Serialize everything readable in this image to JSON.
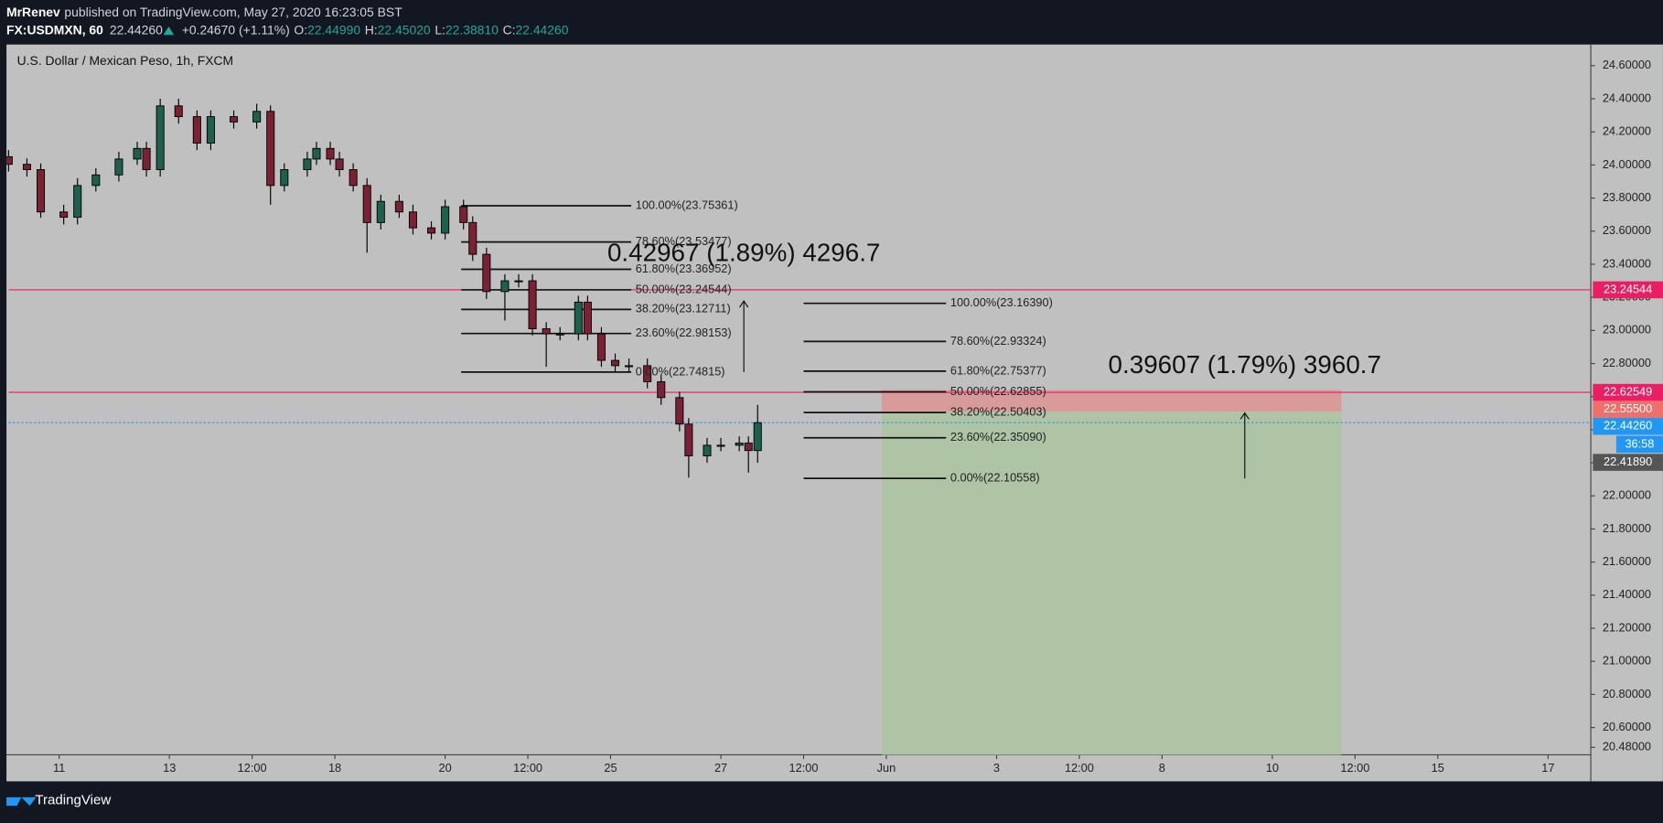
{
  "header": {
    "author": "MrRenev",
    "published": "published on TradingView.com, May 27, 2020 16:23:05 BST",
    "symbol": "FX:USDMXN, 60",
    "last": "22.44260",
    "change": "+0.24670 (+1.11%)",
    "o_label": "O:",
    "open": "22.44990",
    "h_label": "H:",
    "high": "22.45020",
    "l_label": "L:",
    "low": "22.38810",
    "c_label": "C:",
    "close": "22.44260"
  },
  "footer": {
    "brand": "TradingView"
  },
  "chart_data": {
    "type": "candlestick",
    "title": "U.S. Dollar / Mexican Peso, 1h, FXCM",
    "x": [
      0,
      4,
      7,
      12,
      15,
      19,
      24,
      28,
      30,
      33,
      37,
      41,
      44,
      49,
      54,
      57,
      60,
      65,
      67,
      70,
      72,
      75,
      78,
      81,
      85,
      88,
      92,
      95,
      99,
      101,
      104,
      108,
      111,
      114,
      117,
      120,
      124,
      126,
      129,
      132,
      135,
      139,
      142,
      146,
      148,
      152,
      155,
      159,
      161,
      163
    ],
    "open": [
      24.05,
      24.004,
      23.972,
      23.716,
      23.684,
      23.876,
      23.94,
      24.036,
      24.1,
      23.972,
      24.357,
      24.292,
      24.132,
      24.292,
      24.26,
      24.324,
      23.876,
      23.972,
      24.036,
      24.1,
      24.036,
      23.972,
      23.876,
      23.652,
      23.78,
      23.716,
      23.62,
      23.588,
      23.748,
      23.652,
      23.46,
      23.235,
      23.3,
      23.3,
      23.01,
      22.979,
      22.979,
      23.171,
      22.979,
      22.819,
      22.787,
      22.787,
      22.69,
      22.594,
      22.434,
      22.242,
      22.306,
      22.306,
      22.319,
      22.274
    ],
    "high": [
      24.09,
      24.04,
      24.01,
      23.76,
      23.92,
      23.98,
      24.08,
      24.14,
      24.14,
      24.4,
      24.4,
      24.33,
      24.33,
      24.33,
      24.37,
      24.36,
      24.01,
      24.08,
      24.14,
      24.14,
      24.08,
      24.01,
      23.92,
      23.82,
      23.82,
      23.76,
      23.66,
      23.79,
      23.79,
      23.69,
      23.5,
      23.34,
      23.34,
      23.34,
      23.05,
      23.02,
      23.21,
      23.21,
      23.02,
      22.86,
      22.83,
      22.83,
      22.73,
      22.63,
      22.47,
      22.35,
      22.35,
      22.36,
      22.36,
      22.5502
    ],
    "low": [
      23.96,
      23.93,
      23.68,
      23.64,
      23.64,
      23.84,
      23.9,
      24.0,
      23.93,
      23.93,
      24.25,
      24.09,
      24.09,
      24.22,
      24.22,
      23.76,
      23.84,
      23.93,
      24.0,
      24.0,
      23.93,
      23.84,
      23.47,
      23.61,
      23.68,
      23.58,
      23.55,
      23.55,
      23.61,
      23.42,
      23.19,
      23.06,
      23.26,
      22.97,
      22.78,
      22.94,
      22.94,
      22.94,
      22.78,
      22.75,
      22.75,
      22.65,
      22.55,
      22.39,
      22.11,
      22.2,
      22.27,
      22.27,
      22.14,
      22.2
    ],
    "close": [
      24.004,
      23.972,
      23.716,
      23.684,
      23.876,
      23.94,
      24.036,
      24.1,
      23.972,
      24.357,
      24.292,
      24.132,
      24.292,
      24.26,
      24.324,
      23.876,
      23.972,
      24.036,
      24.1,
      24.036,
      23.972,
      23.876,
      23.652,
      23.78,
      23.716,
      23.62,
      23.588,
      23.748,
      23.652,
      23.46,
      23.235,
      23.3,
      23.3,
      23.01,
      22.979,
      22.979,
      23.171,
      22.979,
      22.819,
      22.787,
      22.787,
      22.69,
      22.594,
      22.434,
      22.242,
      22.306,
      22.306,
      22.319,
      22.274,
      22.4426
    ],
    "up_color": "#1f5f4e",
    "down_color": "#7a2233",
    "xlim": [
      0,
      344.3
    ],
    "xticks": [
      {
        "value": 11,
        "label": "11"
      },
      {
        "value": 35,
        "label": "13"
      },
      {
        "value": 53,
        "label": "12:00"
      },
      {
        "value": 71,
        "label": "18"
      },
      {
        "value": 95,
        "label": "20"
      },
      {
        "value": 113,
        "label": "12:00"
      },
      {
        "value": 131,
        "label": "25"
      },
      {
        "value": 155,
        "label": "27"
      },
      {
        "value": 173,
        "label": "12:00"
      },
      {
        "value": 191,
        "label": "Jun"
      },
      {
        "value": 215,
        "label": "3"
      },
      {
        "value": 233,
        "label": "12:00"
      },
      {
        "value": 251,
        "label": "8"
      },
      {
        "value": 275,
        "label": "10"
      },
      {
        "value": 293,
        "label": "12:00"
      },
      {
        "value": 311,
        "label": "15"
      },
      {
        "value": 335,
        "label": "17"
      }
    ],
    "ylim": [
      20.435,
      24.728
    ],
    "yticks": [
      {
        "value": 24.6,
        "label": "24.60000"
      },
      {
        "value": 24.4,
        "label": "24.40000"
      },
      {
        "value": 24.2,
        "label": "24.20000"
      },
      {
        "value": 24.0,
        "label": "24.00000"
      },
      {
        "value": 23.8,
        "label": "23.80000"
      },
      {
        "value": 23.6,
        "label": "23.60000"
      },
      {
        "value": 23.4,
        "label": "23.40000"
      },
      {
        "value": 23.2,
        "label": "23.20000"
      },
      {
        "value": 23.0,
        "label": "23.00000"
      },
      {
        "value": 22.8,
        "label": "22.80000"
      },
      {
        "value": 22.6,
        "label": "22.60000"
      },
      {
        "value": 22.4,
        "label": "22.40000"
      },
      {
        "value": 22.2,
        "label": "22.20000"
      },
      {
        "value": 22.0,
        "label": "22.00000"
      },
      {
        "value": 21.8,
        "label": "21.80000"
      },
      {
        "value": 21.6,
        "label": "21.60000"
      },
      {
        "value": 21.4,
        "label": "21.40000"
      },
      {
        "value": 21.2,
        "label": "21.20000"
      },
      {
        "value": 21.0,
        "label": "21.00000"
      },
      {
        "value": 20.8,
        "label": "20.80000"
      },
      {
        "value": 20.6,
        "label": "20.60000"
      },
      {
        "value": 20.48,
        "label": "20.48000"
      }
    ],
    "grid": false,
    "position": {
      "x": [
        190,
        290
      ],
      "stop": 22.64,
      "entry": 22.51,
      "target": 20.3,
      "stop_color": "#d99a9a",
      "target_color": "#aec4a4"
    },
    "hlines": [
      {
        "value": 23.24544,
        "color": "#e91e63",
        "dash": false
      },
      {
        "value": 22.62549,
        "color": "#e91e63",
        "dash": false
      },
      {
        "value": 22.4426,
        "color": "#2196f3",
        "dash": true
      }
    ],
    "fib": [
      {
        "x": [
          98.5,
          135.5
        ],
        "levels": [
          {
            "value": 23.75361,
            "label": "100.00%(23.75361)"
          },
          {
            "value": 23.53477,
            "label": "78.60%(23.53477)"
          },
          {
            "value": 23.36952,
            "label": "61.80%(23.36952)"
          },
          {
            "value": 23.24544,
            "label": "50.00%(23.24544)"
          },
          {
            "value": 23.12711,
            "label": "38.20%(23.12711)"
          },
          {
            "value": 22.98153,
            "label": "23.60%(22.98153)"
          },
          {
            "value": 22.74815,
            "label": "0.00%(22.74815)"
          }
        ]
      },
      {
        "x": [
          173,
          204
        ],
        "levels": [
          {
            "value": 23.1639,
            "label": "100.00%(23.16390)"
          },
          {
            "value": 22.93324,
            "label": "78.60%(22.93324)"
          },
          {
            "value": 22.75377,
            "label": "61.80%(22.75377)"
          },
          {
            "value": 22.62855,
            "label": "50.00%(22.62855)"
          },
          {
            "value": 22.50403,
            "label": "38.20%(22.50403)"
          },
          {
            "value": 22.3509,
            "label": "23.60%(22.35090)"
          },
          {
            "value": 22.10558,
            "label": "0.00%(22.10558)"
          }
        ]
      }
    ],
    "measures": [
      {
        "x": 160,
        "from": 22.74815,
        "to": 23.17782,
        "label": "0.42967 (1.89%) 4296.7"
      },
      {
        "x": 269,
        "from": 22.10558,
        "to": 22.50165,
        "label": "0.39607 (1.79%) 3960.7"
      }
    ],
    "price_labels": [
      {
        "value": 23.24544,
        "label": "23.24544",
        "color": "#e91e63"
      },
      {
        "value": 22.62549,
        "label": "22.62549",
        "color": "#e91e63"
      },
      {
        "value": 22.555,
        "label": "22.55500",
        "color": "#ef6f6c"
      },
      {
        "value": 22.4426,
        "label": "22.44260",
        "color": "#2196f3"
      },
      {
        "value": 22.4189,
        "label": "22.41890",
        "color": "#555555"
      }
    ],
    "countdown": "36:58"
  }
}
